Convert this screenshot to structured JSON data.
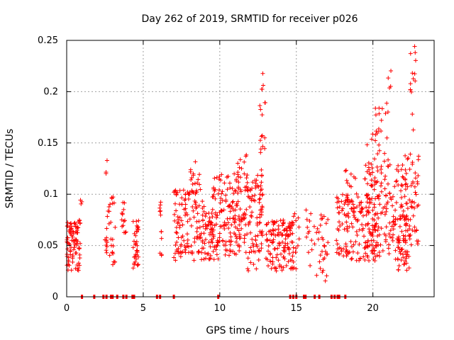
{
  "chart_data": {
    "type": "scatter",
    "title": "Day 262 of 2019, SRMTID for receiver p026",
    "xlabel": "GPS time / hours",
    "ylabel": "SRMTID / TECUs",
    "xlim": [
      0,
      24
    ],
    "ylim": [
      0,
      0.25
    ],
    "grid": true,
    "marker": "+",
    "color": "#ff0000",
    "xticks": [
      0,
      5,
      10,
      15,
      20
    ],
    "xtick_labels": [
      "0",
      "5",
      "10",
      "15",
      "20"
    ],
    "yticks": [
      0,
      0.05,
      0.1,
      0.15,
      0.2,
      0.25
    ],
    "ytick_labels": [
      "0",
      "0.05",
      "0.1",
      "0.15",
      "0.2",
      "0.25"
    ],
    "series": [
      {
        "name": "SRMTID",
        "clusters": [
          {
            "x": [
              0.0,
              0.9
            ],
            "y": [
              0.025,
              0.075
            ],
            "n": 90
          },
          {
            "x": [
              0.9,
              1.0
            ],
            "y": [
              0.085,
              0.095
            ],
            "n": 3
          },
          {
            "x": [
              2.5,
              2.65
            ],
            "y": [
              0.04,
              0.06
            ],
            "n": 8
          },
          {
            "x": [
              2.55,
              2.65
            ],
            "y": [
              0.12,
              0.136
            ],
            "n": 3
          },
          {
            "x": [
              2.6,
              3.2
            ],
            "y": [
              0.03,
              0.1
            ],
            "n": 28
          },
          {
            "x": [
              3.6,
              3.9
            ],
            "y": [
              0.06,
              0.095
            ],
            "n": 14
          },
          {
            "x": [
              4.3,
              4.7
            ],
            "y": [
              0.025,
              0.075
            ],
            "n": 35
          },
          {
            "x": [
              6.05,
              6.2
            ],
            "y": [
              0.035,
              0.1
            ],
            "n": 12
          },
          {
            "x": [
              7.0,
              9.0
            ],
            "y": [
              0.035,
              0.105
            ],
            "n": 130
          },
          {
            "x": [
              8.0,
              8.7
            ],
            "y": [
              0.1,
              0.133
            ],
            "n": 18
          },
          {
            "x": [
              9.0,
              10.0
            ],
            "y": [
              0.035,
              0.085
            ],
            "n": 70
          },
          {
            "x": [
              9.5,
              10.0
            ],
            "y": [
              0.085,
              0.12
            ],
            "n": 15
          },
          {
            "x": [
              10.0,
              12.8
            ],
            "y": [
              0.04,
              0.12
            ],
            "n": 210
          },
          {
            "x": [
              10.5,
              11.8
            ],
            "y": [
              0.12,
              0.14
            ],
            "n": 8
          },
          {
            "x": [
              11.8,
              12.6
            ],
            "y": [
              0.02,
              0.05
            ],
            "n": 12
          },
          {
            "x": [
              12.6,
              13.0
            ],
            "y": [
              0.05,
              0.2
            ],
            "n": 16
          },
          {
            "x": [
              12.7,
              12.85
            ],
            "y": [
              0.2,
              0.226
            ],
            "n": 4
          },
          {
            "x": [
              13.0,
              14.8
            ],
            "y": [
              0.025,
              0.075
            ],
            "n": 130
          },
          {
            "x": [
              14.8,
              15.2
            ],
            "y": [
              0.025,
              0.09
            ],
            "n": 14
          },
          {
            "x": [
              15.6,
              16.2
            ],
            "y": [
              0.03,
              0.085
            ],
            "n": 14
          },
          {
            "x": [
              16.3,
              17.1
            ],
            "y": [
              0.015,
              0.08
            ],
            "n": 30
          },
          {
            "x": [
              17.6,
              19.7
            ],
            "y": [
              0.035,
              0.1
            ],
            "n": 130
          },
          {
            "x": [
              18.0,
              19.0
            ],
            "y": [
              0.1,
              0.125
            ],
            "n": 10
          },
          {
            "x": [
              19.4,
              20.2
            ],
            "y": [
              0.06,
              0.16
            ],
            "n": 22
          },
          {
            "x": [
              19.6,
              22.2
            ],
            "y": [
              0.035,
              0.13
            ],
            "n": 200
          },
          {
            "x": [
              20.0,
              21.0
            ],
            "y": [
              0.13,
              0.19
            ],
            "n": 22
          },
          {
            "x": [
              21.0,
              21.2
            ],
            "y": [
              0.2,
              0.222
            ],
            "n": 4
          },
          {
            "x": [
              21.6,
              22.2
            ],
            "y": [
              0.025,
              0.06
            ],
            "n": 22
          },
          {
            "x": [
              22.1,
              23.0
            ],
            "y": [
              0.05,
              0.14
            ],
            "n": 60
          },
          {
            "x": [
              22.4,
              22.95
            ],
            "y": [
              0.16,
              0.245
            ],
            "n": 14
          },
          {
            "x": [
              22.0,
              22.4
            ],
            "y": [
              0.025,
              0.045
            ],
            "n": 8
          }
        ],
        "zero_points_x": [
          1.0,
          1.8,
          2.4,
          2.6,
          2.9,
          3.0,
          3.3,
          3.7,
          3.9,
          4.3,
          4.4,
          5.9,
          6.1,
          7.0,
          9.9,
          14.6,
          14.8,
          15.0,
          15.5,
          15.6,
          16.2,
          16.5,
          17.3,
          17.5,
          17.7,
          17.8,
          18.2
        ]
      }
    ]
  }
}
